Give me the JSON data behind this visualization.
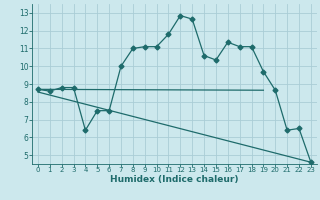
{
  "xlabel": "Humidex (Indice chaleur)",
  "xlim": [
    -0.5,
    23.5
  ],
  "ylim": [
    4.5,
    13.5
  ],
  "yticks": [
    5,
    6,
    7,
    8,
    9,
    10,
    11,
    12,
    13
  ],
  "xticks": [
    0,
    1,
    2,
    3,
    4,
    5,
    6,
    7,
    8,
    9,
    10,
    11,
    12,
    13,
    14,
    15,
    16,
    17,
    18,
    19,
    20,
    21,
    22,
    23
  ],
  "bg_color": "#cce8ed",
  "grid_color": "#aacdd6",
  "line_color": "#1e6b6b",
  "line1_x": [
    0,
    1,
    2,
    3,
    4,
    5,
    6,
    7,
    8,
    9,
    10,
    11,
    12,
    13,
    14,
    15,
    16,
    17,
    18,
    19,
    20,
    21,
    22,
    23
  ],
  "line1_y": [
    8.7,
    8.6,
    8.8,
    8.8,
    6.4,
    7.5,
    7.5,
    10.0,
    11.0,
    11.1,
    11.1,
    11.8,
    12.85,
    12.65,
    10.6,
    10.35,
    11.35,
    11.1,
    11.1,
    9.7,
    8.65,
    6.4,
    6.5,
    4.6
  ],
  "line2_x": [
    0,
    19
  ],
  "line2_y": [
    8.7,
    8.65
  ],
  "line3_x": [
    0,
    23
  ],
  "line3_y": [
    8.55,
    4.6
  ],
  "marker_size": 2.5,
  "linewidth": 0.9,
  "tick_fontsize": 5.0,
  "xlabel_fontsize": 6.5
}
